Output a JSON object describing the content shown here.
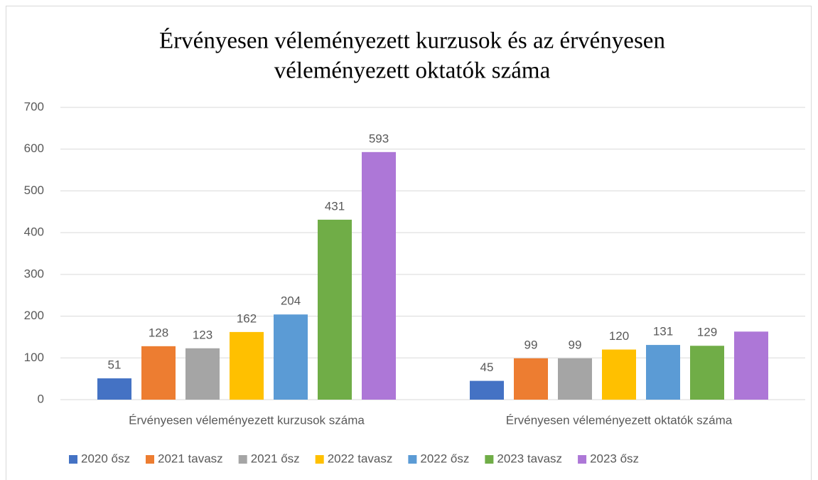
{
  "chart_data": {
    "type": "bar",
    "title": [
      "Érvényesen véleményezett kurzusok és az érvényesen",
      "véleményezett oktatók száma"
    ],
    "categories": [
      "Érvényesen véleményezett kurzusok száma",
      "Érvényesen véleményezett oktatók száma"
    ],
    "series": [
      {
        "name": "2020 ősz",
        "color": "#4472c4",
        "values": [
          51,
          45
        ]
      },
      {
        "name": "2021 tavasz",
        "color": "#ed7d31",
        "values": [
          128,
          99
        ]
      },
      {
        "name": "2021 ősz",
        "color": "#a5a5a5",
        "values": [
          123,
          99
        ]
      },
      {
        "name": "2022 tavasz",
        "color": "#ffc000",
        "values": [
          162,
          120
        ]
      },
      {
        "name": "2022 ősz",
        "color": "#5b9bd5",
        "values": [
          204,
          131
        ]
      },
      {
        "name": "2023 tavasz",
        "color": "#70ad47",
        "values": [
          431,
          129
        ]
      },
      {
        "name": "2023 ősz",
        "color": "#ad77d7",
        "values": [
          593,
          163
        ],
        "value_labels": [
          "593",
          null
        ]
      }
    ],
    "ylim": [
      0,
      700
    ],
    "yticks": [
      0,
      100,
      200,
      300,
      400,
      500,
      600,
      700
    ],
    "grid": true,
    "legend": "bottom"
  }
}
